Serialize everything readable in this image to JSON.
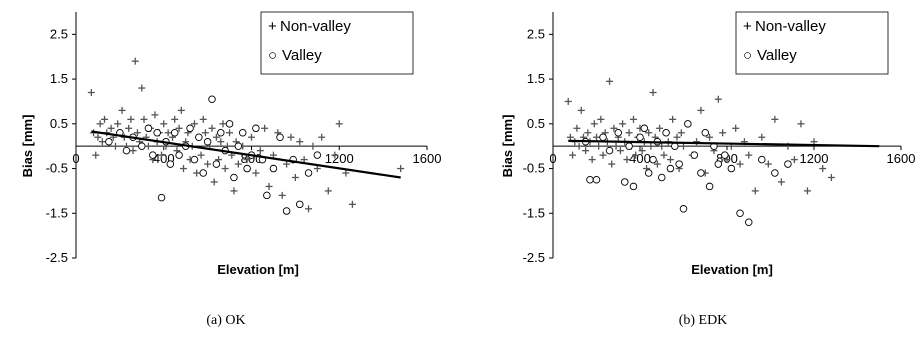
{
  "chart_data": [
    {
      "type": "scatter",
      "caption": "(a)  OK",
      "xlabel": "Elevation [m]",
      "ylabel": "Bias [mm]",
      "xlim": [
        0,
        1600
      ],
      "ylim": [
        -2.5,
        3.0
      ],
      "xticks": [
        "0",
        "400",
        "800",
        "1200",
        "1600"
      ],
      "yticks": [
        "2.5",
        "1.5",
        "0.5",
        "-0.5",
        "-1.5",
        "-2.5"
      ],
      "legend": {
        "position": "top-right",
        "entries": [
          {
            "marker": "+",
            "label": "Non-valley"
          },
          {
            "marker": "○",
            "label": "Valley"
          }
        ]
      },
      "series": [
        {
          "name": "Non-valley",
          "marker": "plus",
          "points": [
            [
              70,
              1.2
            ],
            [
              80,
              0.3
            ],
            [
              90,
              -0.2
            ],
            [
              100,
              0.2
            ],
            [
              110,
              0.5
            ],
            [
              120,
              0.1
            ],
            [
              130,
              0.6
            ],
            [
              140,
              0.3
            ],
            [
              150,
              0.1
            ],
            [
              160,
              0.4
            ],
            [
              170,
              0.2
            ],
            [
              180,
              0.0
            ],
            [
              190,
              0.5
            ],
            [
              200,
              0.3
            ],
            [
              210,
              0.8
            ],
            [
              220,
              0.2
            ],
            [
              230,
              0.0
            ],
            [
              240,
              0.4
            ],
            [
              250,
              0.6
            ],
            [
              260,
              -0.1
            ],
            [
              270,
              1.9
            ],
            [
              280,
              0.3
            ],
            [
              290,
              0.1
            ],
            [
              300,
              1.3
            ],
            [
              310,
              0.6
            ],
            [
              320,
              0.2
            ],
            [
              330,
              0.0
            ],
            [
              340,
              0.4
            ],
            [
              350,
              -0.3
            ],
            [
              360,
              0.7
            ],
            [
              370,
              0.1
            ],
            [
              380,
              0.3
            ],
            [
              390,
              -0.2
            ],
            [
              400,
              0.5
            ],
            [
              410,
              0.0
            ],
            [
              420,
              0.3
            ],
            [
              430,
              -0.4
            ],
            [
              440,
              0.2
            ],
            [
              450,
              0.6
            ],
            [
              460,
              -0.1
            ],
            [
              470,
              0.4
            ],
            [
              480,
              0.8
            ],
            [
              490,
              -0.5
            ],
            [
              500,
              0.1
            ],
            [
              510,
              0.3
            ],
            [
              520,
              -0.3
            ],
            [
              530,
              0.0
            ],
            [
              540,
              0.5
            ],
            [
              550,
              -0.6
            ],
            [
              560,
              0.2
            ],
            [
              570,
              -0.2
            ],
            [
              580,
              0.6
            ],
            [
              590,
              0.3
            ],
            [
              600,
              -0.4
            ],
            [
              610,
              0.0
            ],
            [
              620,
              0.4
            ],
            [
              630,
              -0.8
            ],
            [
              640,
              0.2
            ],
            [
              650,
              -0.3
            ],
            [
              660,
              0.1
            ],
            [
              670,
              0.5
            ],
            [
              680,
              -0.5
            ],
            [
              690,
              0.0
            ],
            [
              700,
              0.3
            ],
            [
              710,
              -0.2
            ],
            [
              720,
              -1.0
            ],
            [
              730,
              0.1
            ],
            [
              740,
              -0.4
            ],
            [
              760,
              0.0
            ],
            [
              780,
              -0.3
            ],
            [
              800,
              0.2
            ],
            [
              820,
              -0.6
            ],
            [
              840,
              -0.1
            ],
            [
              860,
              0.4
            ],
            [
              880,
              -0.9
            ],
            [
              900,
              -0.2
            ],
            [
              920,
              0.3
            ],
            [
              940,
              -1.1
            ],
            [
              960,
              -0.4
            ],
            [
              980,
              0.2
            ],
            [
              1000,
              -0.7
            ],
            [
              1020,
              0.1
            ],
            [
              1040,
              -0.3
            ],
            [
              1060,
              -1.4
            ],
            [
              1080,
              0.0
            ],
            [
              1100,
              -0.5
            ],
            [
              1120,
              0.2
            ],
            [
              1150,
              -1.0
            ],
            [
              1180,
              -0.2
            ],
            [
              1200,
              0.5
            ],
            [
              1230,
              -0.6
            ],
            [
              1260,
              -1.3
            ],
            [
              1480,
              -0.5
            ]
          ]
        },
        {
          "name": "Valley",
          "marker": "circle",
          "points": [
            [
              150,
              0.1
            ],
            [
              200,
              0.3
            ],
            [
              230,
              -0.1
            ],
            [
              260,
              0.2
            ],
            [
              300,
              0.0
            ],
            [
              330,
              0.4
            ],
            [
              350,
              -0.2
            ],
            [
              370,
              0.3
            ],
            [
              390,
              -1.15
            ],
            [
              410,
              0.1
            ],
            [
              430,
              -0.4
            ],
            [
              450,
              0.3
            ],
            [
              470,
              -0.2
            ],
            [
              500,
              0.0
            ],
            [
              520,
              0.4
            ],
            [
              540,
              -0.3
            ],
            [
              560,
              0.2
            ],
            [
              580,
              -0.6
            ],
            [
              600,
              0.1
            ],
            [
              620,
              1.05
            ],
            [
              640,
              -0.4
            ],
            [
              660,
              0.3
            ],
            [
              680,
              -0.1
            ],
            [
              700,
              0.5
            ],
            [
              720,
              -0.7
            ],
            [
              740,
              0.0
            ],
            [
              760,
              0.3
            ],
            [
              780,
              -0.5
            ],
            [
              800,
              -0.2
            ],
            [
              820,
              0.4
            ],
            [
              850,
              -0.3
            ],
            [
              870,
              -1.1
            ],
            [
              900,
              -0.5
            ],
            [
              930,
              0.2
            ],
            [
              960,
              -1.45
            ],
            [
              990,
              -0.3
            ],
            [
              1020,
              -1.3
            ],
            [
              1060,
              -0.6
            ],
            [
              1100,
              -0.2
            ]
          ]
        }
      ],
      "trend": {
        "x": [
          70,
          1480
        ],
        "y": [
          0.33,
          -0.7
        ]
      }
    },
    {
      "type": "scatter",
      "caption": "(b)  EDK",
      "xlabel": "Elevation [m]",
      "ylabel": "Bias [mm]",
      "xlim": [
        0,
        1600
      ],
      "ylim": [
        -2.5,
        3.0
      ],
      "xticks": [
        "0",
        "400",
        "800",
        "1200",
        "1600"
      ],
      "yticks": [
        "2.5",
        "1.5",
        "0.5",
        "-0.5",
        "-1.5",
        "-2.5"
      ],
      "legend": {
        "position": "top-right",
        "entries": [
          {
            "marker": "+",
            "label": "Non-valley"
          },
          {
            "marker": "○",
            "label": "Valley"
          }
        ]
      },
      "series": [
        {
          "name": "Non-valley",
          "marker": "plus",
          "points": [
            [
              70,
              1.0
            ],
            [
              80,
              0.2
            ],
            [
              90,
              -0.2
            ],
            [
              100,
              0.1
            ],
            [
              110,
              0.4
            ],
            [
              120,
              0.0
            ],
            [
              130,
              0.8
            ],
            [
              140,
              0.2
            ],
            [
              150,
              -0.1
            ],
            [
              160,
              0.3
            ],
            [
              170,
              0.1
            ],
            [
              180,
              -0.3
            ],
            [
              190,
              0.5
            ],
            [
              200,
              0.2
            ],
            [
              210,
              0.0
            ],
            [
              220,
              0.6
            ],
            [
              230,
              -0.2
            ],
            [
              240,
              0.3
            ],
            [
              250,
              0.1
            ],
            [
              260,
              1.45
            ],
            [
              270,
              -0.4
            ],
            [
              280,
              0.4
            ],
            [
              290,
              0.0
            ],
            [
              300,
              0.2
            ],
            [
              310,
              -0.1
            ],
            [
              320,
              0.5
            ],
            [
              330,
              0.1
            ],
            [
              340,
              -0.3
            ],
            [
              350,
              0.3
            ],
            [
              360,
              0.0
            ],
            [
              370,
              0.6
            ],
            [
              380,
              -0.2
            ],
            [
              390,
              0.2
            ],
            [
              400,
              0.4
            ],
            [
              410,
              -0.1
            ],
            [
              420,
              0.1
            ],
            [
              430,
              -0.5
            ],
            [
              440,
              0.3
            ],
            [
              450,
              0.0
            ],
            [
              460,
              1.2
            ],
            [
              470,
              0.2
            ],
            [
              480,
              -0.4
            ],
            [
              490,
              0.4
            ],
            [
              500,
              0.0
            ],
            [
              510,
              -0.2
            ],
            [
              520,
              0.3
            ],
            [
              530,
              0.1
            ],
            [
              540,
              -0.3
            ],
            [
              550,
              0.6
            ],
            [
              560,
              0.0
            ],
            [
              570,
              0.2
            ],
            [
              580,
              -0.5
            ],
            [
              590,
              0.3
            ],
            [
              600,
              0.0
            ],
            [
              620,
              0.5
            ],
            [
              640,
              -0.2
            ],
            [
              660,
              0.1
            ],
            [
              680,
              0.8
            ],
            [
              700,
              -0.6
            ],
            [
              720,
              0.2
            ],
            [
              740,
              -0.1
            ],
            [
              760,
              1.05
            ],
            [
              780,
              0.3
            ],
            [
              800,
              -0.3
            ],
            [
              820,
              0.0
            ],
            [
              840,
              0.4
            ],
            [
              860,
              -0.4
            ],
            [
              880,
              0.1
            ],
            [
              900,
              -0.2
            ],
            [
              930,
              -1.0
            ],
            [
              960,
              0.2
            ],
            [
              990,
              -0.4
            ],
            [
              1020,
              0.6
            ],
            [
              1050,
              -0.8
            ],
            [
              1080,
              0.0
            ],
            [
              1110,
              -0.3
            ],
            [
              1140,
              0.5
            ],
            [
              1170,
              -1.0
            ],
            [
              1200,
              0.1
            ],
            [
              1240,
              -0.5
            ],
            [
              1280,
              -0.7
            ],
            [
              1500,
              2.0
            ]
          ]
        },
        {
          "name": "Valley",
          "marker": "circle",
          "points": [
            [
              150,
              0.1
            ],
            [
              170,
              -0.75
            ],
            [
              200,
              -0.75
            ],
            [
              230,
              0.2
            ],
            [
              260,
              -0.1
            ],
            [
              300,
              0.3
            ],
            [
              330,
              -0.8
            ],
            [
              350,
              0.0
            ],
            [
              370,
              -0.9
            ],
            [
              400,
              0.2
            ],
            [
              420,
              0.4
            ],
            [
              440,
              -0.6
            ],
            [
              460,
              -0.3
            ],
            [
              480,
              0.1
            ],
            [
              500,
              -0.7
            ],
            [
              520,
              0.3
            ],
            [
              540,
              -0.5
            ],
            [
              560,
              0.0
            ],
            [
              580,
              -0.4
            ],
            [
              600,
              -1.4
            ],
            [
              620,
              0.5
            ],
            [
              650,
              -0.2
            ],
            [
              680,
              -0.6
            ],
            [
              700,
              0.3
            ],
            [
              720,
              -0.9
            ],
            [
              740,
              0.0
            ],
            [
              760,
              -0.4
            ],
            [
              790,
              -0.2
            ],
            [
              820,
              -0.5
            ],
            [
              860,
              -1.5
            ],
            [
              900,
              -1.7
            ],
            [
              960,
              -0.3
            ],
            [
              1020,
              -0.6
            ],
            [
              1080,
              -0.4
            ]
          ]
        }
      ],
      "trend": {
        "x": [
          70,
          1500
        ],
        "y": [
          0.12,
          0.0
        ]
      }
    }
  ]
}
